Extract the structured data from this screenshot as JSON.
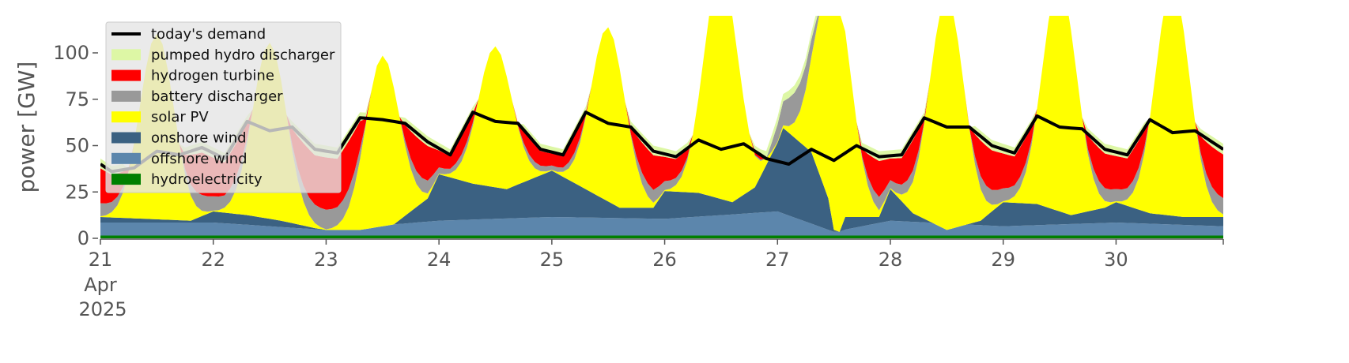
{
  "chart_data": {
    "type": "area",
    "ylabel": "power [GW]",
    "ylim": [
      0,
      120
    ],
    "yticks": [
      0,
      25,
      50,
      75,
      100
    ],
    "xlim": [
      0,
      9.95
    ],
    "xticks": [
      {
        "x": 0,
        "label": "21"
      },
      {
        "x": 1,
        "label": "22"
      },
      {
        "x": 2,
        "label": "23"
      },
      {
        "x": 3,
        "label": "24"
      },
      {
        "x": 4,
        "label": "25"
      },
      {
        "x": 5,
        "label": "26"
      },
      {
        "x": 6,
        "label": "27"
      },
      {
        "x": 7,
        "label": "28"
      },
      {
        "x": 8,
        "label": "29"
      },
      {
        "x": 9,
        "label": "30"
      }
    ],
    "xtick_sublabels": [
      "Apr",
      "2025"
    ],
    "legend_location": "upper-left",
    "stack_order": [
      "hydroelectricity",
      "offshore wind",
      "onshore wind",
      "solar PV",
      "battery discharger",
      "hydrogen turbine",
      "pumped hydro discharger"
    ],
    "series": [
      {
        "name": "today's demand",
        "kind": "line",
        "color": "#000000"
      },
      {
        "name": "pumped hydro discharger",
        "kind": "area",
        "color": "#ddf7a5"
      },
      {
        "name": "hydrogen turbine",
        "kind": "area",
        "color": "#ff0000"
      },
      {
        "name": "battery discharger",
        "kind": "area",
        "color": "#999999"
      },
      {
        "name": "solar PV",
        "kind": "area",
        "color": "#ffff00"
      },
      {
        "name": "onshore wind",
        "kind": "area",
        "color": "#3b6182"
      },
      {
        "name": "offshore wind",
        "kind": "area",
        "color": "#5c86ac"
      },
      {
        "name": "hydroelectricity",
        "kind": "area",
        "color": "#008000"
      }
    ],
    "profiles": {
      "x_step": 0.05,
      "hydroelectricity_level": 1.5,
      "wind_total_knots": [
        [
          0,
          10
        ],
        [
          0.4,
          9
        ],
        [
          0.8,
          8
        ],
        [
          1.0,
          13
        ],
        [
          1.3,
          11
        ],
        [
          1.6,
          8
        ],
        [
          1.9,
          4
        ],
        [
          2.0,
          3
        ],
        [
          2.3,
          3
        ],
        [
          2.6,
          6
        ],
        [
          2.9,
          20
        ],
        [
          3.0,
          33
        ],
        [
          3.3,
          28
        ],
        [
          3.6,
          25
        ],
        [
          4.0,
          35
        ],
        [
          4.3,
          25
        ],
        [
          4.6,
          15
        ],
        [
          4.9,
          15
        ],
        [
          5.0,
          24
        ],
        [
          5.3,
          23
        ],
        [
          5.6,
          18
        ],
        [
          5.8,
          26
        ],
        [
          6.0,
          50
        ],
        [
          6.05,
          58
        ],
        [
          6.3,
          45
        ],
        [
          6.45,
          20
        ],
        [
          6.5,
          3
        ],
        [
          6.55,
          2
        ],
        [
          6.6,
          10
        ],
        [
          6.9,
          10
        ],
        [
          7.0,
          25
        ],
        [
          7.2,
          12
        ],
        [
          7.5,
          3
        ],
        [
          7.8,
          8
        ],
        [
          8.0,
          18
        ],
        [
          8.3,
          17
        ],
        [
          8.6,
          11
        ],
        [
          8.9,
          15
        ],
        [
          9.0,
          18
        ],
        [
          9.3,
          12
        ],
        [
          9.6,
          10
        ],
        [
          9.95,
          10
        ]
      ],
      "offshore_wind_knots": [
        [
          0,
          7
        ],
        [
          1,
          7
        ],
        [
          2,
          3
        ],
        [
          3,
          8
        ],
        [
          4,
          10
        ],
        [
          5,
          9
        ],
        [
          6,
          13
        ],
        [
          6.5,
          2
        ],
        [
          7,
          8
        ],
        [
          8,
          5
        ],
        [
          9,
          7
        ],
        [
          9.95,
          5
        ]
      ],
      "solar_peaks": [
        [
          0.5,
          100
        ],
        [
          1.5,
          95
        ],
        [
          2.5,
          92
        ],
        [
          3.5,
          76
        ],
        [
          4.5,
          94
        ],
        [
          5.5,
          125
        ],
        [
          6.5,
          125
        ],
        [
          7.5,
          125
        ],
        [
          8.5,
          125
        ],
        [
          9.5,
          125
        ]
      ],
      "solar_width": 0.15,
      "demand_knots": [
        [
          0,
          40
        ],
        [
          0.1,
          36
        ],
        [
          0.3,
          38
        ],
        [
          0.5,
          47
        ],
        [
          0.7,
          45
        ],
        [
          0.9,
          49
        ],
        [
          1.1,
          43
        ],
        [
          1.3,
          63
        ],
        [
          1.5,
          58
        ],
        [
          1.7,
          60
        ],
        [
          1.9,
          48
        ],
        [
          2.1,
          46
        ],
        [
          2.3,
          65
        ],
        [
          2.5,
          64
        ],
        [
          2.7,
          62
        ],
        [
          2.9,
          52
        ],
        [
          3.1,
          45
        ],
        [
          3.3,
          68
        ],
        [
          3.5,
          63
        ],
        [
          3.7,
          62
        ],
        [
          3.9,
          48
        ],
        [
          4.1,
          45
        ],
        [
          4.3,
          68
        ],
        [
          4.5,
          62
        ],
        [
          4.7,
          60
        ],
        [
          4.9,
          47
        ],
        [
          5.1,
          44
        ],
        [
          5.3,
          53
        ],
        [
          5.5,
          48
        ],
        [
          5.7,
          51
        ],
        [
          5.9,
          43
        ],
        [
          6.1,
          40
        ],
        [
          6.3,
          48
        ],
        [
          6.5,
          42
        ],
        [
          6.7,
          50
        ],
        [
          6.9,
          44
        ],
        [
          7.1,
          45
        ],
        [
          7.3,
          65
        ],
        [
          7.5,
          60
        ],
        [
          7.7,
          60
        ],
        [
          7.9,
          50
        ],
        [
          8.1,
          46
        ],
        [
          8.3,
          66
        ],
        [
          8.5,
          60
        ],
        [
          8.7,
          59
        ],
        [
          8.9,
          48
        ],
        [
          9.1,
          45
        ],
        [
          9.3,
          64
        ],
        [
          9.5,
          57
        ],
        [
          9.7,
          58
        ],
        [
          9.95,
          48
        ]
      ],
      "battery_share": 0.25,
      "pumped_hydro_share": 0.08,
      "night_pumped_hydro_extra": 3,
      "storage_boost_window": [
        5.9,
        6.4
      ],
      "storage_boost_GW": 16
    }
  },
  "legend": {
    "items": [
      {
        "label": "today's demand",
        "kind": "line",
        "color": "#000000"
      },
      {
        "label": "pumped hydro discharger",
        "kind": "patch",
        "color": "#ddf7a5"
      },
      {
        "label": "hydrogen turbine",
        "kind": "patch",
        "color": "#ff0000"
      },
      {
        "label": "battery discharger",
        "kind": "patch",
        "color": "#999999"
      },
      {
        "label": "solar PV",
        "kind": "patch",
        "color": "#ffff00"
      },
      {
        "label": "onshore wind",
        "kind": "patch",
        "color": "#3b6182"
      },
      {
        "label": "offshore wind",
        "kind": "patch",
        "color": "#5c86ac"
      },
      {
        "label": "hydroelectricity",
        "kind": "patch",
        "color": "#008000"
      }
    ]
  }
}
